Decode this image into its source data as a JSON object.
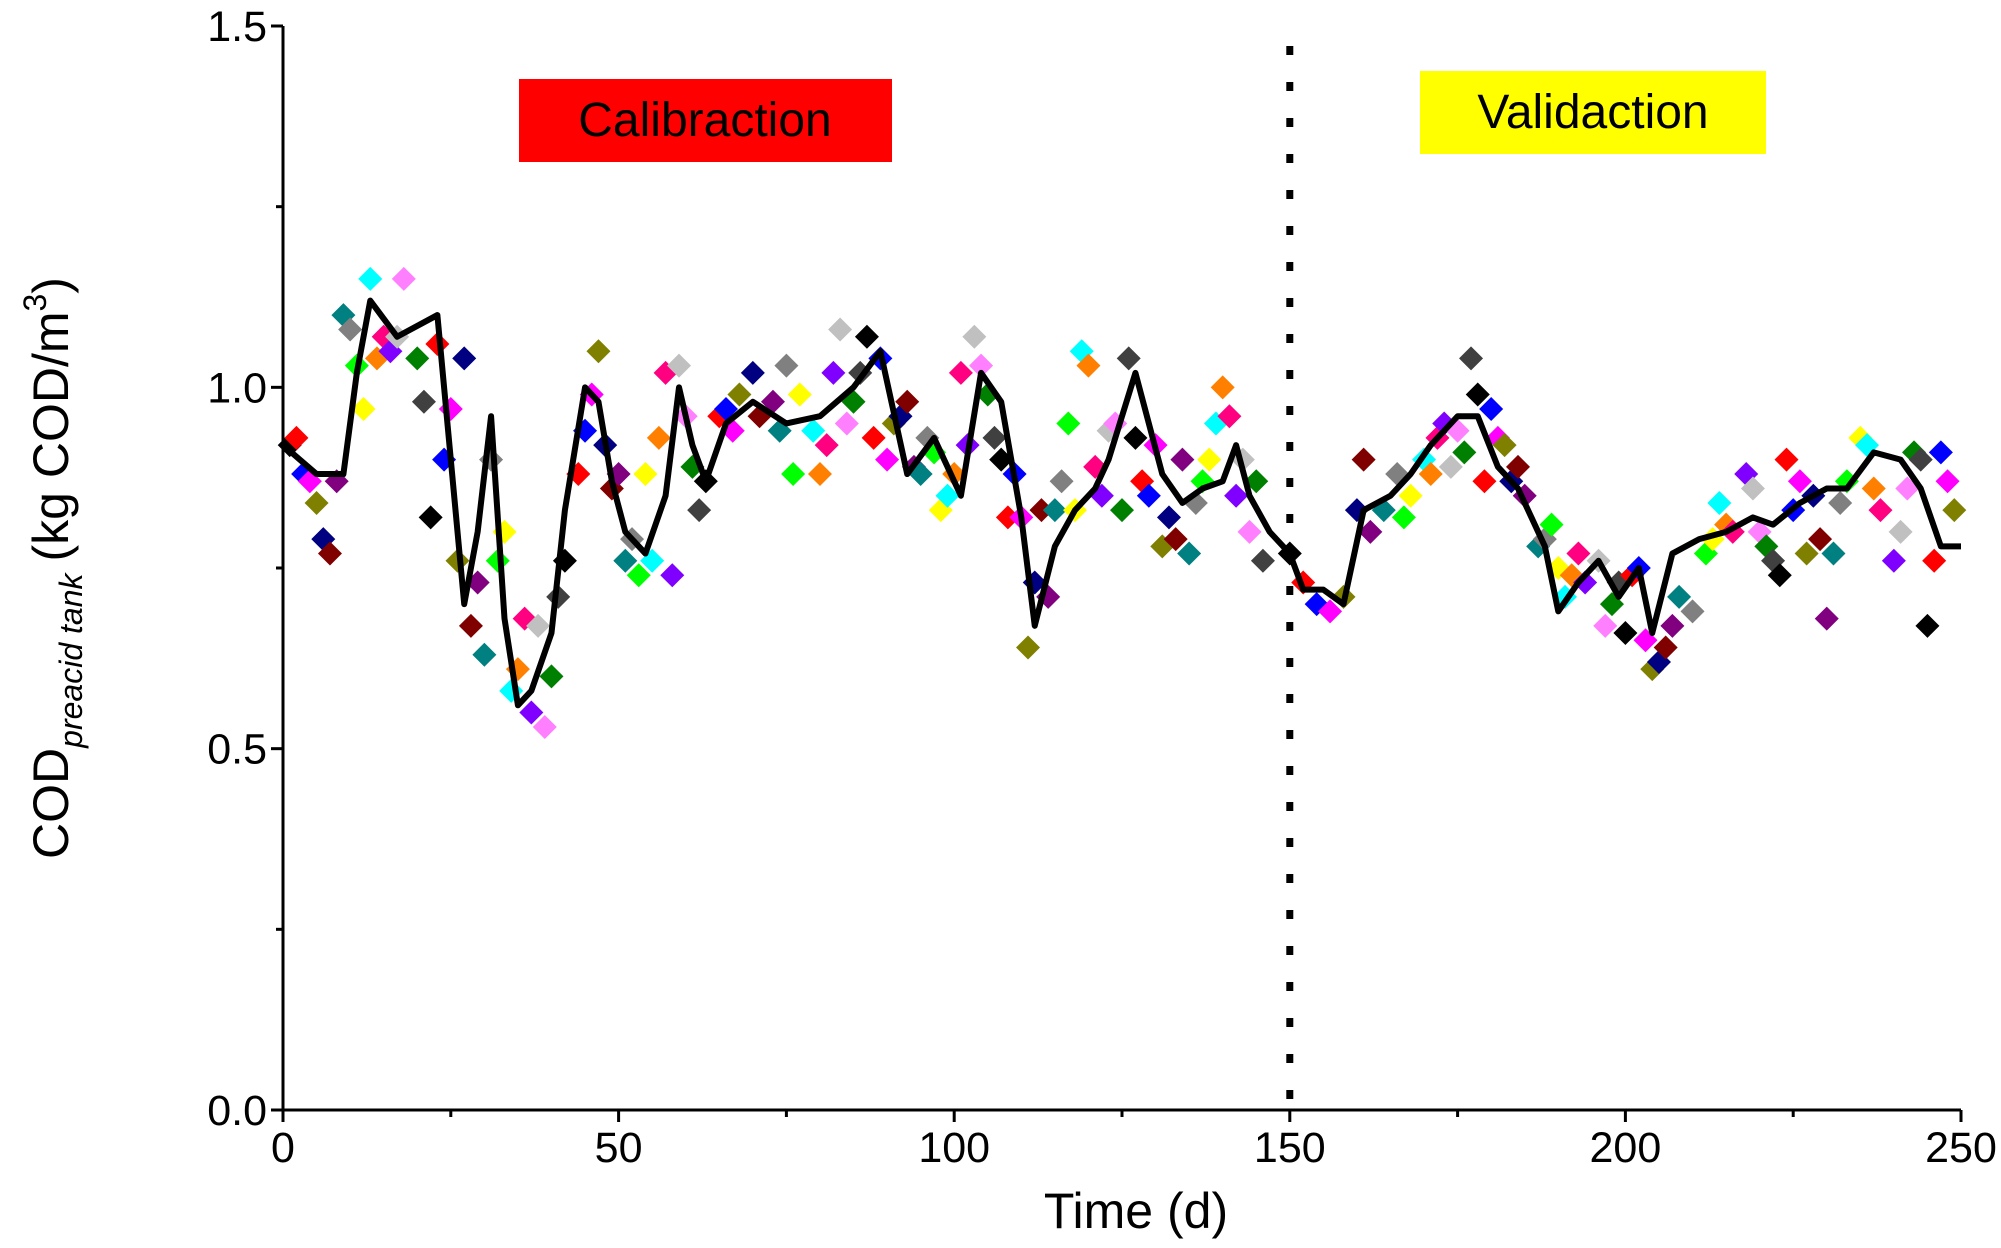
{
  "chart_data": {
    "type": "scatter",
    "x_label": "Time (d)",
    "y_label": {
      "main": "COD",
      "sub": "preacid tank",
      "unit": "(kg COD/m",
      "sup": "3",
      "close": ")"
    },
    "annotations": [
      {
        "text": "Calibraction",
        "color": "#ff0000"
      },
      {
        "text": "Validaction",
        "color": "#ffff00"
      }
    ],
    "divider_x": 150,
    "xlim": [
      0,
      250
    ],
    "ylim": [
      0,
      1.5
    ],
    "xticks": [
      0,
      50,
      100,
      150,
      200,
      250
    ],
    "yticks": [
      {
        "value": 0,
        "label": "0.0"
      },
      0.5,
      {
        "value": 1,
        "label": "1.0"
      },
      1.5
    ],
    "xminor": [
      25,
      75,
      125,
      175,
      225
    ],
    "yminor": [
      0.25,
      0.75,
      1.25
    ],
    "marker": "diamond",
    "palette": [
      "#000000",
      "#ff0000",
      "#0000ff",
      "#ff00ff",
      "#808000",
      "#000080",
      "#800000",
      "#800080",
      "#008080",
      "#808080",
      "#00ff00",
      "#ffff00",
      "#00ffff",
      "#ff8000",
      "#ff0080",
      "#8000ff",
      "#c0c0c0",
      "#ff80ff",
      "#008000",
      "#404040"
    ],
    "points": {
      "x": [
        1,
        2,
        3,
        4,
        5,
        6,
        7,
        8,
        9,
        10,
        11,
        12,
        13,
        14,
        15,
        16,
        17,
        18,
        20,
        21,
        22,
        23,
        24,
        25,
        26,
        27,
        28,
        29,
        30,
        31,
        32,
        33,
        34,
        35,
        36,
        37,
        38,
        39,
        40,
        41,
        42,
        44,
        45,
        46,
        47,
        48,
        49,
        50,
        51,
        52,
        53,
        54,
        55,
        56,
        57,
        58,
        59,
        60,
        61,
        62,
        63,
        65,
        66,
        67,
        68,
        70,
        71,
        73,
        74,
        75,
        76,
        77,
        79,
        80,
        81,
        82,
        83,
        84,
        85,
        86,
        87,
        88,
        89,
        90,
        91,
        92,
        93,
        94,
        95,
        96,
        97,
        98,
        99,
        100,
        101,
        102,
        103,
        104,
        105,
        106,
        107,
        108,
        109,
        110,
        111,
        112,
        113,
        114,
        115,
        116,
        117,
        118,
        119,
        120,
        121,
        122,
        123,
        124,
        125,
        126,
        127,
        128,
        129,
        130,
        131,
        132,
        133,
        134,
        135,
        136,
        137,
        138,
        139,
        140,
        141,
        142,
        143,
        144,
        145,
        146,
        150,
        152,
        154,
        156,
        158,
        160,
        161,
        162,
        164,
        166,
        167,
        168,
        170,
        171,
        172,
        173,
        174,
        175,
        176,
        177,
        178,
        179,
        180,
        181,
        182,
        183,
        184,
        185,
        187,
        188,
        189,
        190,
        191,
        192,
        193,
        194,
        196,
        197,
        198,
        199,
        200,
        201,
        202,
        203,
        204,
        205,
        206,
        207,
        208,
        210,
        212,
        213,
        214,
        215,
        216,
        218,
        219,
        220,
        221,
        222,
        223,
        224,
        225,
        226,
        227,
        228,
        229,
        230,
        231,
        232,
        233,
        235,
        236,
        237,
        238,
        240,
        241,
        242,
        243,
        244,
        245,
        246,
        247,
        248,
        249
      ],
      "y": [
        0.92,
        0.93,
        0.88,
        0.87,
        0.84,
        0.79,
        0.77,
        0.87,
        1.1,
        1.08,
        1.03,
        0.97,
        1.15,
        1.04,
        1.07,
        1.05,
        1.07,
        1.15,
        1.04,
        0.98,
        0.82,
        1.06,
        0.9,
        0.97,
        0.76,
        1.04,
        0.67,
        0.73,
        0.63,
        0.9,
        0.76,
        0.8,
        0.58,
        0.61,
        0.68,
        0.55,
        0.67,
        0.53,
        0.6,
        0.71,
        0.76,
        0.88,
        0.94,
        0.99,
        1.05,
        0.92,
        0.86,
        0.88,
        0.76,
        0.79,
        0.74,
        0.88,
        0.76,
        0.93,
        1.02,
        0.74,
        1.03,
        0.96,
        0.89,
        0.83,
        0.87,
        0.96,
        0.97,
        0.94,
        0.99,
        1.02,
        0.96,
        0.98,
        0.94,
        1.03,
        0.88,
        0.99,
        0.94,
        0.88,
        0.92,
        1.02,
        1.08,
        0.95,
        0.98,
        1.02,
        1.07,
        0.93,
        1.04,
        0.9,
        0.95,
        0.96,
        0.98,
        0.89,
        0.88,
        0.93,
        0.91,
        0.83,
        0.85,
        0.88,
        1.02,
        0.92,
        1.07,
        1.03,
        0.99,
        0.93,
        0.9,
        0.82,
        0.88,
        0.82,
        0.64,
        0.73,
        0.83,
        0.71,
        0.83,
        0.87,
        0.95,
        0.83,
        1.05,
        1.03,
        0.89,
        0.85,
        0.94,
        0.95,
        0.83,
        1.04,
        0.93,
        0.87,
        0.85,
        0.92,
        0.78,
        0.82,
        0.79,
        0.9,
        0.77,
        0.84,
        0.87,
        0.9,
        0.95,
        1.0,
        0.96,
        0.85,
        0.9,
        0.8,
        0.87,
        0.76,
        0.77,
        0.73,
        0.7,
        0.69,
        0.71,
        0.83,
        0.9,
        0.8,
        0.83,
        0.88,
        0.82,
        0.85,
        0.9,
        0.88,
        0.93,
        0.95,
        0.89,
        0.94,
        0.91,
        1.04,
        0.99,
        0.87,
        0.97,
        0.93,
        0.92,
        0.87,
        0.89,
        0.85,
        0.78,
        0.79,
        0.81,
        0.75,
        0.71,
        0.74,
        0.77,
        0.73,
        0.76,
        0.67,
        0.7,
        0.73,
        0.66,
        0.74,
        0.75,
        0.65,
        0.61,
        0.62,
        0.64,
        0.67,
        0.71,
        0.69,
        0.77,
        0.79,
        0.84,
        0.81,
        0.8,
        0.88,
        0.86,
        0.8,
        0.78,
        0.76,
        0.74,
        0.9,
        0.83,
        0.87,
        0.77,
        0.85,
        0.79,
        0.68,
        0.77,
        0.84,
        0.87,
        0.93,
        0.92,
        0.86,
        0.83,
        0.76,
        0.8,
        0.86,
        0.91,
        0.9,
        0.67,
        0.76,
        0.91,
        0.87,
        0.83
      ]
    },
    "line": {
      "color": "#000000",
      "x": [
        0,
        5,
        9,
        11,
        13,
        17,
        23,
        25,
        27,
        29,
        31,
        33,
        35,
        37,
        40,
        42,
        45,
        47,
        49,
        51,
        54,
        57,
        59,
        61,
        63,
        66,
        70,
        75,
        80,
        85,
        89,
        93,
        97,
        101,
        104,
        107,
        110,
        112,
        115,
        118,
        121,
        123,
        127,
        131,
        134,
        137,
        140,
        142,
        144,
        147,
        150,
        152,
        155,
        158,
        161,
        165,
        168,
        171,
        175,
        178,
        181,
        184,
        188,
        190,
        193,
        196,
        199,
        202,
        204,
        207,
        211,
        215,
        219,
        222,
        226,
        230,
        233,
        237,
        241,
        244,
        247,
        250
      ],
      "y": [
        0.92,
        0.88,
        0.88,
        1.02,
        1.12,
        1.07,
        1.1,
        0.9,
        0.7,
        0.8,
        0.96,
        0.68,
        0.56,
        0.58,
        0.66,
        0.83,
        1.0,
        0.98,
        0.87,
        0.8,
        0.77,
        0.85,
        1.0,
        0.92,
        0.87,
        0.95,
        0.98,
        0.95,
        0.96,
        1.0,
        1.05,
        0.88,
        0.93,
        0.85,
        1.02,
        0.98,
        0.82,
        0.67,
        0.78,
        0.83,
        0.86,
        0.9,
        1.02,
        0.88,
        0.84,
        0.86,
        0.87,
        0.92,
        0.85,
        0.8,
        0.77,
        0.72,
        0.72,
        0.7,
        0.83,
        0.85,
        0.88,
        0.92,
        0.96,
        0.96,
        0.89,
        0.86,
        0.78,
        0.69,
        0.73,
        0.76,
        0.71,
        0.75,
        0.66,
        0.77,
        0.79,
        0.8,
        0.82,
        0.81,
        0.84,
        0.86,
        0.86,
        0.91,
        0.9,
        0.86,
        0.78,
        0.78
      ]
    }
  }
}
